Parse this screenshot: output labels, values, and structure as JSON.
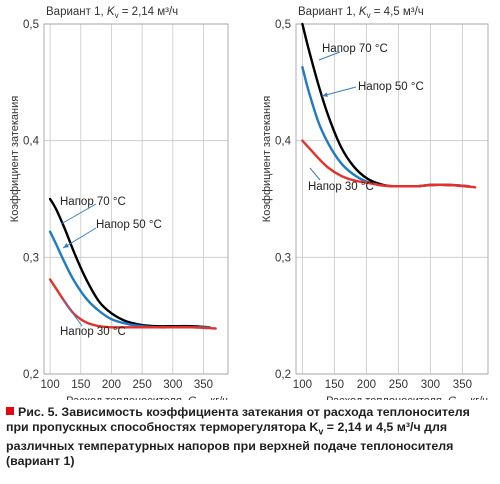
{
  "chart_data": [
    {
      "type": "line",
      "title_prefix": "Вариант 1,",
      "title_param": "K",
      "title_sub": "v",
      "title_value": "= 2,14 м³/ч",
      "ylabel": "Коэффициент затекания",
      "xlim": [
        90,
        390
      ],
      "ylim": [
        0.2,
        0.5
      ],
      "xticks": [
        100,
        150,
        200,
        250,
        300,
        350
      ],
      "yticks": [
        0.2,
        0.3,
        0.4,
        0.5
      ],
      "ytick_labels": [
        "0,2",
        "0,3",
        "0,4",
        "0,5"
      ],
      "series": [
        {
          "name": "Напор 70 °C",
          "color": "#000000",
          "x": [
            100,
            110,
            125,
            140,
            160,
            180,
            200,
            225,
            250,
            275,
            300,
            330,
            360
          ],
          "y": [
            0.35,
            0.341,
            0.323,
            0.303,
            0.28,
            0.262,
            0.252,
            0.245,
            0.242,
            0.241,
            0.241,
            0.241,
            0.24
          ]
        },
        {
          "name": "Напор 50 °C",
          "color": "#1f7ac9",
          "x": [
            100,
            110,
            125,
            140,
            160,
            180,
            200,
            225,
            250,
            275,
            300,
            330,
            360
          ],
          "y": [
            0.322,
            0.311,
            0.294,
            0.279,
            0.264,
            0.254,
            0.247,
            0.243,
            0.241,
            0.24,
            0.24,
            0.24,
            0.24
          ]
        },
        {
          "name": "Напор 30 °C",
          "color": "#e8302a",
          "x": [
            100,
            110,
            125,
            140,
            160,
            180,
            200,
            225,
            250,
            275,
            300,
            330,
            370
          ],
          "y": [
            0.281,
            0.273,
            0.261,
            0.251,
            0.244,
            0.241,
            0.24,
            0.24,
            0.24,
            0.24,
            0.24,
            0.24,
            0.239
          ]
        }
      ]
    },
    {
      "type": "line",
      "title_prefix": "Вариант 1,",
      "title_param": "K",
      "title_sub": "v",
      "title_value": "= 4,5 м³/ч",
      "ylabel": "Коэффициент затекания",
      "xlim": [
        90,
        390
      ],
      "ylim": [
        0.2,
        0.5
      ],
      "xticks": [
        100,
        150,
        200,
        250,
        300,
        350
      ],
      "yticks": [
        0.2,
        0.3,
        0.4,
        0.5
      ],
      "ytick_labels": [
        "0,2",
        "0,3",
        "0,4",
        "0,5"
      ],
      "series": [
        {
          "name": "Напор 70 °C",
          "color": "#000000",
          "x": [
            100,
            110,
            125,
            140,
            160,
            180,
            200,
            220,
            240,
            260,
            280,
            300,
            330,
            360
          ],
          "y": [
            0.5,
            0.478,
            0.448,
            0.422,
            0.395,
            0.378,
            0.368,
            0.363,
            0.361,
            0.361,
            0.361,
            0.362,
            0.362,
            0.361
          ]
        },
        {
          "name": "Напор 50 °C",
          "color": "#1f7ac9",
          "x": [
            100,
            110,
            125,
            140,
            160,
            180,
            200,
            220,
            240,
            260,
            280,
            300,
            330,
            360
          ],
          "y": [
            0.463,
            0.442,
            0.416,
            0.398,
            0.381,
            0.371,
            0.365,
            0.362,
            0.361,
            0.361,
            0.361,
            0.362,
            0.362,
            0.361
          ]
        },
        {
          "name": "Напор 30 °C",
          "color": "#e8302a",
          "x": [
            100,
            110,
            125,
            140,
            160,
            180,
            200,
            220,
            240,
            260,
            280,
            300,
            330,
            370
          ],
          "y": [
            0.4,
            0.394,
            0.385,
            0.377,
            0.37,
            0.366,
            0.364,
            0.362,
            0.361,
            0.361,
            0.361,
            0.362,
            0.362,
            0.36
          ]
        }
      ]
    }
  ],
  "xlabel_prefix": "Расход теплоносителя,",
  "xlabel_symbol": "G",
  "xlabel_sub": "ст",
  "xlabel_unit": ", кг/ч",
  "caption": {
    "text": "Рис. 5. Зависимость коэффициента затекания от расхода теплоносителя при пропускных способностях терморегулятора K",
    "sub": "v",
    "text2": " = 2,14 и 4,5 м³/ч для различных температурных напоров при верхней подаче теплоносителя (вариант 1)"
  }
}
